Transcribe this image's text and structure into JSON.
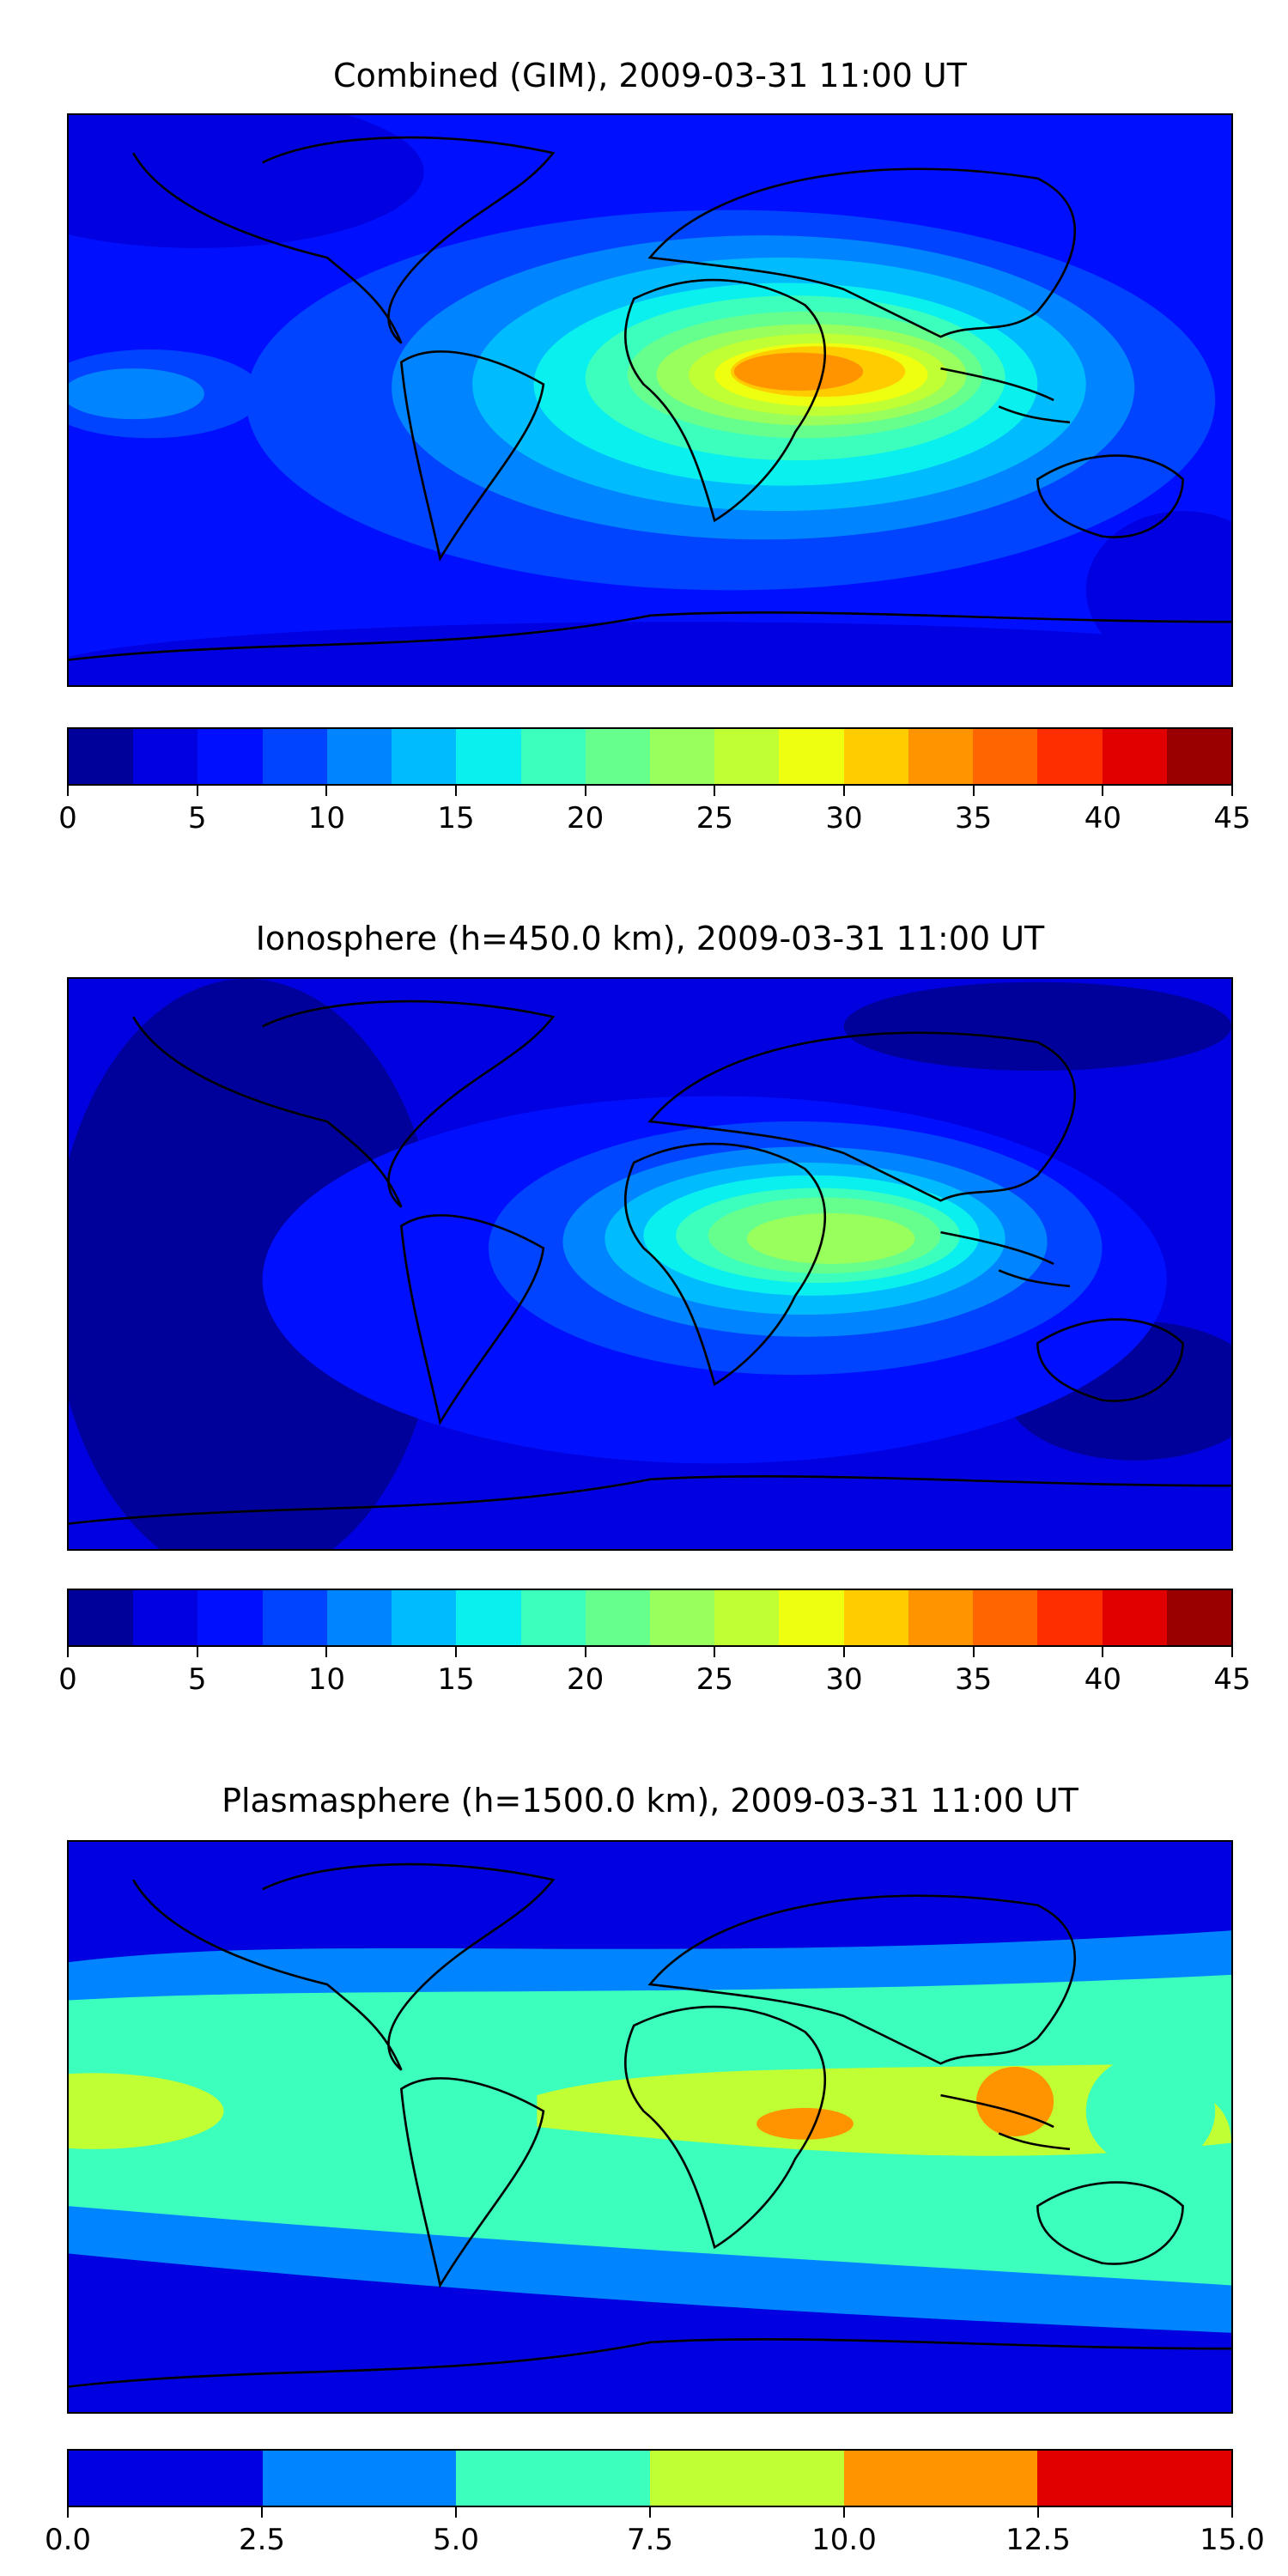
{
  "chart_data": [
    {
      "type": "heatmap",
      "title": "Combined (GIM), 2009-03-31 11:00 UT",
      "colorbar": {
        "range": [
          0,
          45
        ],
        "ticks": [
          "0",
          "5",
          "10",
          "15",
          "20",
          "25",
          "30",
          "35",
          "40",
          "45"
        ],
        "levels": [
          "#00009a",
          "#0000e0",
          "#0010ff",
          "#0044ff",
          "#0084ff",
          "#00bcff",
          "#0af0ee",
          "#3cffbe",
          "#66ff8e",
          "#99ff5c",
          "#c0ff33",
          "#eeff10",
          "#ffcc00",
          "#ff9400",
          "#ff6600",
          "#ff2e00",
          "#e00000",
          "#9a0000"
        ]
      },
      "peak_value_range": [
        32.5,
        35
      ],
      "peak_region": "Africa / Arabian Sea, near equator"
    },
    {
      "type": "heatmap",
      "title": "Ionosphere  (h=450.0 km), 2009-03-31 11:00 UT",
      "colorbar": {
        "range": [
          0,
          45
        ],
        "ticks": [
          "0",
          "5",
          "10",
          "15",
          "20",
          "25",
          "30",
          "35",
          "40",
          "45"
        ],
        "levels": [
          "#00009a",
          "#0000e0",
          "#0010ff",
          "#0044ff",
          "#0084ff",
          "#00bcff",
          "#0af0ee",
          "#3cffbe",
          "#66ff8e",
          "#99ff5c",
          "#c0ff33",
          "#eeff10",
          "#ffcc00",
          "#ff9400",
          "#ff6600",
          "#ff2e00",
          "#e00000",
          "#9a0000"
        ]
      },
      "peak_value_range": [
        22.5,
        25
      ],
      "peak_region": "Africa / Indian Ocean"
    },
    {
      "type": "heatmap",
      "title": "Plasmasphere (h=1500.0 km), 2009-03-31 11:00 UT",
      "colorbar": {
        "range": [
          0,
          15
        ],
        "ticks": [
          "0.0",
          "2.5",
          "5.0",
          "7.5",
          "10.0",
          "12.5",
          "15.0"
        ],
        "levels": [
          "#0000e0",
          "#0084ff",
          "#3cffbe",
          "#c0ff33",
          "#ff9400",
          "#e00000"
        ]
      },
      "peak_value_range": [
        10,
        12.5
      ],
      "peak_region": "East Africa and Southeast Asia"
    }
  ]
}
